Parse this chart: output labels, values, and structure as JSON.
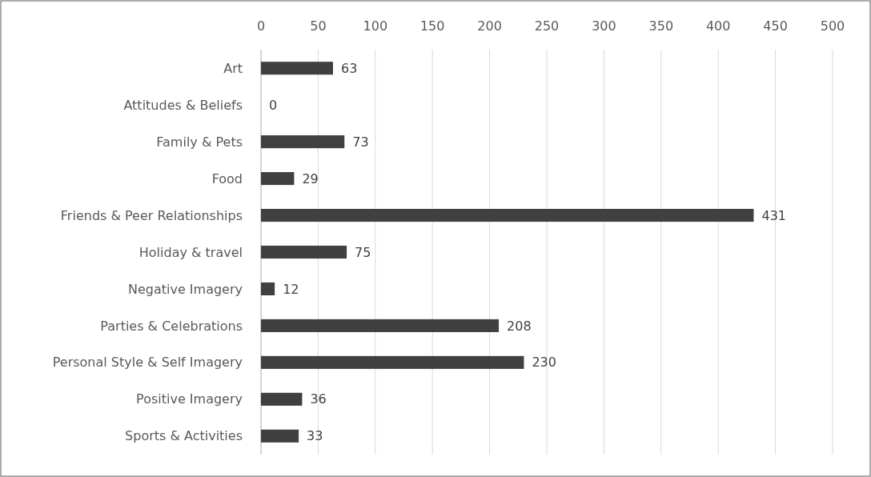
{
  "chart_data": {
    "type": "bar",
    "orientation": "horizontal",
    "categories": [
      "Art",
      "Attitudes & Beliefs",
      "Family & Pets",
      "Food",
      "Friends & Peer Relationships",
      "Holiday & travel",
      "Negative Imagery",
      "Parties & Celebrations",
      "Personal Style & Self Imagery",
      "Positive Imagery",
      "Sports & Activities"
    ],
    "values": [
      63,
      0,
      73,
      29,
      431,
      75,
      12,
      208,
      230,
      36,
      33
    ],
    "color": "#404040",
    "xlim": [
      0,
      500
    ],
    "xticks": [
      0,
      50,
      100,
      150,
      200,
      250,
      300,
      350,
      400,
      450,
      500
    ],
    "grid": "x",
    "data_labels": true
  }
}
